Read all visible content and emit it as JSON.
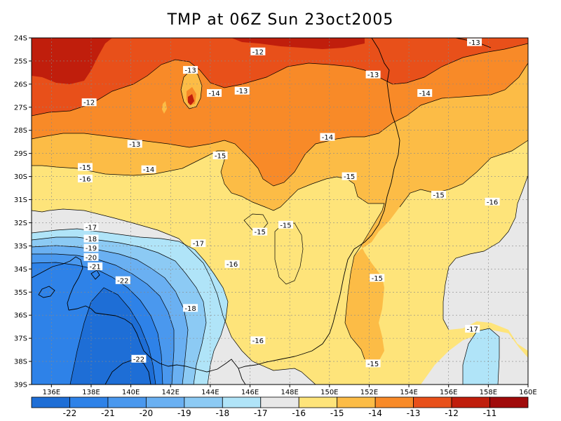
{
  "title": "TMP at 06Z Sun 23oct2005",
  "chart_data": {
    "type": "heatmap",
    "variable": "TMP",
    "lon_range": [
      135,
      160
    ],
    "lat_range": [
      -39,
      -24
    ],
    "x_ticks": [
      "136E",
      "138E",
      "140E",
      "142E",
      "144E",
      "146E",
      "148E",
      "150E",
      "152E",
      "154E",
      "156E",
      "158E",
      "160E"
    ],
    "y_ticks": [
      "24S",
      "25S",
      "26S",
      "27S",
      "28S",
      "29S",
      "30S",
      "31S",
      "32S",
      "33S",
      "34S",
      "35S",
      "36S",
      "37S",
      "38S",
      "39S"
    ],
    "grid": true,
    "contour_labels": [
      {
        "text": "-12",
        "lon": 146.4,
        "lat": -24.6
      },
      {
        "text": "-13",
        "lon": 157.3,
        "lat": -24.2
      },
      {
        "text": "-13",
        "lon": 143.0,
        "lat": -25.4
      },
      {
        "text": "-13",
        "lon": 152.2,
        "lat": -25.6
      },
      {
        "text": "-12",
        "lon": 137.9,
        "lat": -26.8
      },
      {
        "text": "-14",
        "lon": 144.2,
        "lat": -26.4
      },
      {
        "text": "-13",
        "lon": 145.6,
        "lat": -26.3
      },
      {
        "text": "-14",
        "lon": 154.8,
        "lat": -26.4
      },
      {
        "text": "-14",
        "lon": 149.9,
        "lat": -28.3
      },
      {
        "text": "-13",
        "lon": 140.2,
        "lat": -28.6
      },
      {
        "text": "-15",
        "lon": 144.5,
        "lat": -29.1
      },
      {
        "text": "-15",
        "lon": 137.7,
        "lat": -29.6
      },
      {
        "text": "-14",
        "lon": 140.9,
        "lat": -29.7
      },
      {
        "text": "-15",
        "lon": 151.0,
        "lat": -30.0
      },
      {
        "text": "-16",
        "lon": 137.7,
        "lat": -30.1
      },
      {
        "text": "-15",
        "lon": 155.5,
        "lat": -30.8
      },
      {
        "text": "-16",
        "lon": 158.2,
        "lat": -31.1
      },
      {
        "text": "-17",
        "lon": 138.0,
        "lat": -32.2
      },
      {
        "text": "-15",
        "lon": 146.5,
        "lat": -32.4
      },
      {
        "text": "-15",
        "lon": 147.8,
        "lat": -32.1
      },
      {
        "text": "-18",
        "lon": 138.0,
        "lat": -32.7
      },
      {
        "text": "-17",
        "lon": 143.4,
        "lat": -32.9
      },
      {
        "text": "-19",
        "lon": 138.0,
        "lat": -33.1
      },
      {
        "text": "-20",
        "lon": 138.0,
        "lat": -33.5
      },
      {
        "text": "-16",
        "lon": 145.1,
        "lat": -33.8
      },
      {
        "text": "-21",
        "lon": 138.2,
        "lat": -33.9
      },
      {
        "text": "-22",
        "lon": 139.6,
        "lat": -34.5
      },
      {
        "text": "-15",
        "lon": 152.4,
        "lat": -34.4
      },
      {
        "text": "-18",
        "lon": 143.0,
        "lat": -35.7
      },
      {
        "text": "-17",
        "lon": 157.2,
        "lat": -36.6
      },
      {
        "text": "-16",
        "lon": 146.4,
        "lat": -37.1
      },
      {
        "text": "-22",
        "lon": 140.4,
        "lat": -37.9
      },
      {
        "text": "-15",
        "lon": 152.2,
        "lat": -38.1
      }
    ],
    "legend": {
      "labels": [
        "-22",
        "-21",
        "-20",
        "-19",
        "-18",
        "-17",
        "-16",
        "-15",
        "-14",
        "-13",
        "-12",
        "-11"
      ],
      "colors": [
        "#1e6ed6",
        "#2e82e8",
        "#4a98ee",
        "#6ab0f2",
        "#8ccaf4",
        "#b0e4f8",
        "#e8e8e8",
        "#fee47a",
        "#fcbc46",
        "#f88a28",
        "#e8501a",
        "#c01e0c",
        "#a00a0a"
      ]
    }
  }
}
